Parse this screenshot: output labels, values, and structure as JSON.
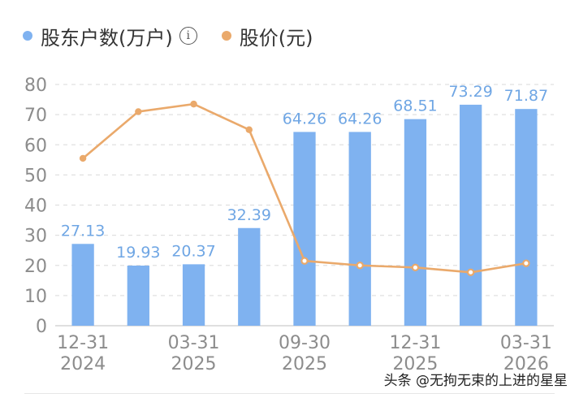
{
  "legend": {
    "series1": "股东户数(万户)",
    "series2": "股价(元)",
    "info_icon": "info-icon"
  },
  "watermark": "头条 @无拘无束的上进的星星",
  "colors": {
    "bar": "#7fb2f0",
    "line": "#eaa96b",
    "bar_label": "#6fa6e4",
    "axis_text": "#8c8c8c",
    "grid": "#e0e0e0"
  },
  "chart_data": {
    "type": "bar",
    "categories": [
      "12-31\n2024",
      "",
      "03-31\n2025",
      "",
      "09-30\n2025",
      "",
      "12-31\n2025",
      "",
      "03-31\n2026"
    ],
    "x_tick_labels": [
      {
        "index": 0,
        "line1": "12-31",
        "line2": "2024"
      },
      {
        "index": 2,
        "line1": "03-31",
        "line2": "2025"
      },
      {
        "index": 4,
        "line1": "09-30",
        "line2": "2025"
      },
      {
        "index": 6,
        "line1": "12-31",
        "line2": "2025"
      },
      {
        "index": 8,
        "line1": "03-31",
        "line2": "2026"
      }
    ],
    "series": [
      {
        "name": "股东户数(万户)",
        "type": "bar",
        "values": [
          27.13,
          19.93,
          20.37,
          32.39,
          64.26,
          64.26,
          68.51,
          73.29,
          71.87
        ],
        "labels": [
          "27.13",
          "19.93",
          "20.37",
          "32.39",
          "64.26",
          "64.26",
          "68.51",
          "73.29",
          "71.87"
        ]
      },
      {
        "name": "股价(元)",
        "type": "line",
        "values": [
          55.5,
          71,
          73.5,
          65,
          21.5,
          20,
          19.3,
          17.7,
          20.7
        ]
      }
    ],
    "yticks": [
      "0",
      "10",
      "20",
      "30",
      "40",
      "50",
      "60",
      "70",
      "80"
    ],
    "ylim": [
      0,
      80
    ],
    "grid": true,
    "legend_position": "top-left"
  }
}
